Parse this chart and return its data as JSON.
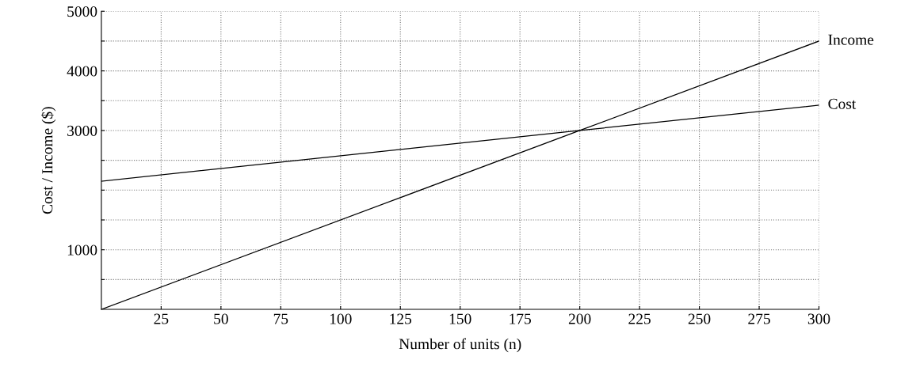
{
  "chart_data": {
    "type": "line",
    "xlabel": "Number of units (n)",
    "ylabel": "Cost / Income ($)",
    "xlim": [
      0,
      300
    ],
    "ylim": [
      0,
      5000
    ],
    "xticks": [
      25,
      50,
      75,
      100,
      125,
      150,
      175,
      200,
      225,
      250,
      275,
      300
    ],
    "yticks": [
      {
        "value": 500,
        "label": null
      },
      1000,
      {
        "value": 1500,
        "label": null
      },
      {
        "value": 2000,
        "label": null
      },
      {
        "value": 2500,
        "label": null
      },
      3000,
      {
        "value": 3500,
        "label": null
      },
      4000,
      {
        "value": 4500,
        "label": null
      },
      5000
    ],
    "grid": true,
    "line_style": "solid",
    "marker": "none",
    "series": [
      {
        "name": "Income",
        "color": "#000000",
        "x": [
          0,
          200,
          300
        ],
        "values": [
          0,
          3000,
          4500
        ]
      },
      {
        "name": "Cost",
        "color": "#000000",
        "x": [
          0,
          200,
          300
        ],
        "values": [
          2150,
          3000,
          3425
        ]
      }
    ]
  }
}
